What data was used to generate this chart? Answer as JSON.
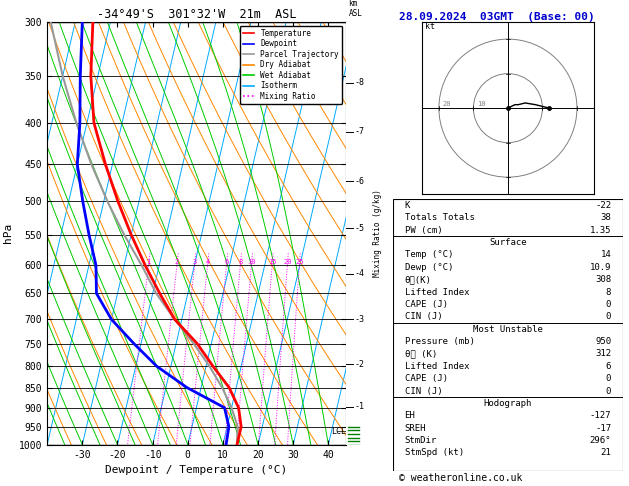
{
  "title_left": "-34°49'S  301°32'W  21m  ASL",
  "title_right": "28.09.2024  03GMT  (Base: 00)",
  "xlabel": "Dewpoint / Temperature (°C)",
  "ylabel_left": "hPa",
  "pressure_levels": [
    300,
    350,
    400,
    450,
    500,
    550,
    600,
    650,
    700,
    750,
    800,
    850,
    900,
    950,
    1000
  ],
  "temp_xticks": [
    -30,
    -20,
    -10,
    0,
    10,
    20,
    30,
    40
  ],
  "temp_profile": {
    "temps": [
      14,
      14,
      12,
      8,
      2,
      -4,
      -12,
      -18,
      -24,
      -30,
      -36,
      -42,
      -48,
      -52,
      -55
    ],
    "pressures": [
      1000,
      950,
      900,
      850,
      800,
      750,
      700,
      650,
      600,
      550,
      500,
      450,
      400,
      350,
      300
    ],
    "color": "#ff0000",
    "linewidth": 2.0
  },
  "dewp_profile": {
    "temps": [
      10.9,
      10.5,
      8,
      -4,
      -14,
      -22,
      -30,
      -36,
      -38,
      -42,
      -46,
      -50,
      -52,
      -55,
      -58
    ],
    "pressures": [
      1000,
      950,
      900,
      850,
      800,
      750,
      700,
      650,
      600,
      550,
      500,
      450,
      400,
      350,
      300
    ],
    "color": "#0000ff",
    "linewidth": 2.0
  },
  "parcel_profile": {
    "temps": [
      14,
      13,
      10,
      6,
      1,
      -5,
      -12,
      -19,
      -25,
      -32,
      -39,
      -46,
      -53,
      -60,
      -67
    ],
    "pressures": [
      1000,
      950,
      900,
      850,
      800,
      750,
      700,
      650,
      600,
      550,
      500,
      450,
      400,
      350,
      300
    ],
    "color": "#999999",
    "linewidth": 1.5
  },
  "lcl_pressure": 962,
  "isotherm_color": "#00aaff",
  "isotherm_linewidth": 0.7,
  "dry_adiabat_color": "#ff8800",
  "dry_adiabat_linewidth": 0.7,
  "wet_adiabat_color": "#00cc00",
  "wet_adiabat_linewidth": 0.7,
  "mixing_ratio_color": "#ff00ff",
  "mixing_ratio_linewidth": 0.7,
  "mixing_ratios": [
    1,
    2,
    3,
    4,
    6,
    8,
    10,
    15,
    20,
    25
  ],
  "km_ticks": {
    "values": [
      1,
      2,
      3,
      4,
      5,
      6,
      7,
      8
    ],
    "pressures": [
      898,
      795,
      700,
      615,
      540,
      472,
      410,
      357
    ]
  },
  "sounding_params": {
    "K": -22,
    "Totals_Totals": 38,
    "PW_cm": 1.35,
    "Surface_Temp": 14,
    "Surface_Dewp": 10.9,
    "Surface_thetae": 308,
    "Surface_LI": 8,
    "Surface_CAPE": 0,
    "Surface_CIN": 0,
    "MU_Pressure": 950,
    "MU_thetae": 312,
    "MU_LI": 6,
    "MU_CAPE": 0,
    "MU_CIN": 0,
    "EH": -127,
    "SREH": -17,
    "StmDir": 296,
    "StmSpd": 21
  },
  "legend_items": [
    {
      "label": "Temperature",
      "color": "#ff0000",
      "linestyle": "-"
    },
    {
      "label": "Dewpoint",
      "color": "#0000ff",
      "linestyle": "-"
    },
    {
      "label": "Parcel Trajectory",
      "color": "#999999",
      "linestyle": "-"
    },
    {
      "label": "Dry Adiabat",
      "color": "#ff8800",
      "linestyle": "-"
    },
    {
      "label": "Wet Adiabat",
      "color": "#00cc00",
      "linestyle": "-"
    },
    {
      "label": "Isotherm",
      "color": "#00aaff",
      "linestyle": "-"
    },
    {
      "label": "Mixing Ratio",
      "color": "#ff00ff",
      "linestyle": ":"
    }
  ],
  "copyright": "© weatheronline.co.uk",
  "skew_factor": 28
}
